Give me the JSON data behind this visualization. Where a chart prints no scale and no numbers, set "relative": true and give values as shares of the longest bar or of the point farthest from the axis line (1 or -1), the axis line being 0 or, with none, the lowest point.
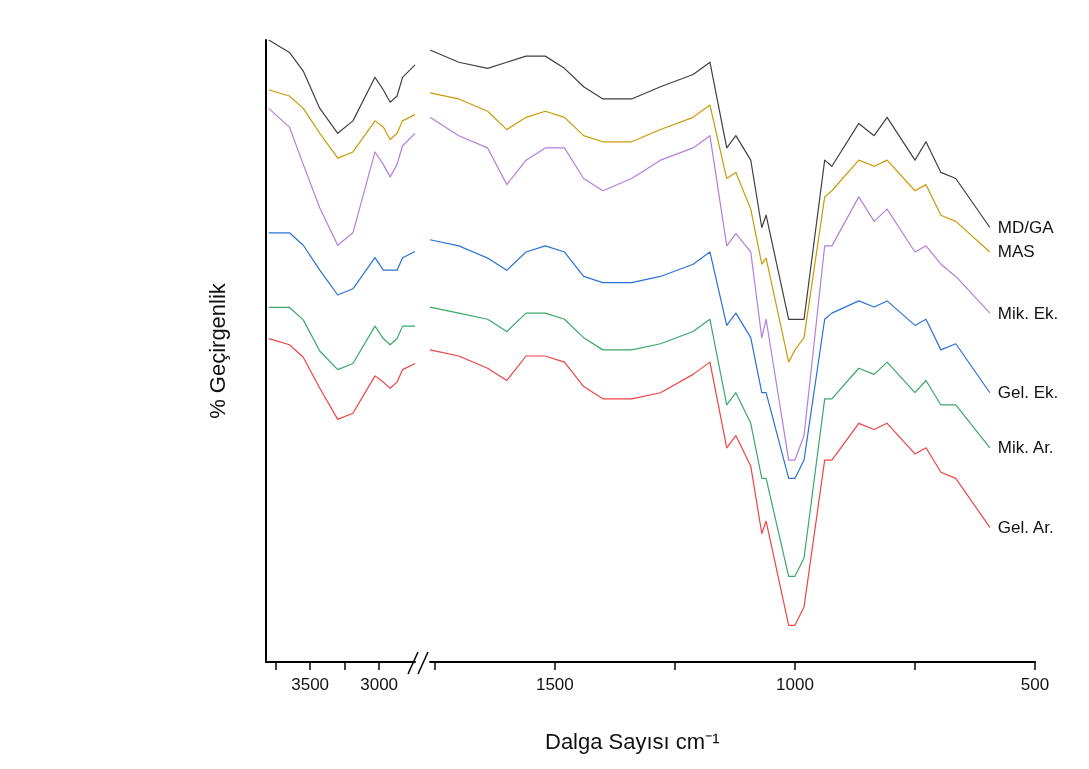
{
  "chart_data": [
    {
      "type": "line",
      "ylabel": "% Geçirgenlik",
      "relative": true,
      "xlim": [
        3820,
        2740
      ],
      "xticks": [
        {
          "value": 3750,
          "label": null
        },
        3500,
        {
          "value": 3250,
          "label": null
        },
        3000
      ],
      "x": [
        3800,
        3650,
        3550,
        3430,
        3300,
        3190,
        3030,
        2970,
        2920,
        2870,
        2830,
        2740
      ],
      "series": [
        {
          "color": "#404040",
          "values": [
            1.0,
            0.98,
            0.95,
            0.89,
            0.85,
            0.87,
            0.94,
            0.92,
            0.9,
            0.91,
            0.94,
            0.96
          ]
        },
        {
          "color": "#cc9a06",
          "values": [
            0.92,
            0.91,
            0.89,
            0.85,
            0.81,
            0.82,
            0.87,
            0.86,
            0.84,
            0.85,
            0.87,
            0.88
          ]
        },
        {
          "color": "#b57edc",
          "values": [
            0.89,
            0.86,
            0.8,
            0.73,
            0.67,
            0.69,
            0.82,
            0.8,
            0.78,
            0.8,
            0.83,
            0.85
          ]
        },
        {
          "color": "#2a72d6",
          "values": [
            0.69,
            0.69,
            0.67,
            0.63,
            0.59,
            0.6,
            0.65,
            0.63,
            0.63,
            0.63,
            0.65,
            0.66
          ]
        },
        {
          "color": "#3aa86a",
          "values": [
            0.57,
            0.57,
            0.55,
            0.5,
            0.47,
            0.48,
            0.54,
            0.52,
            0.51,
            0.52,
            0.54,
            0.54
          ]
        },
        {
          "color": "#ee4444",
          "values": [
            0.52,
            0.51,
            0.49,
            0.44,
            0.39,
            0.4,
            0.46,
            0.45,
            0.44,
            0.45,
            0.47,
            0.48
          ]
        }
      ]
    },
    {
      "type": "line",
      "xlabel": "Dalga Sayısı cm⁻¹",
      "relative": true,
      "xlim": [
        1760,
        500
      ],
      "xticks": [
        {
          "value": 1750,
          "label": null
        },
        1500,
        {
          "value": 1250,
          "label": null
        },
        1000,
        {
          "value": 750,
          "label": null
        },
        500
      ],
      "x": [
        1760,
        1700,
        1640,
        1600,
        1560,
        1520,
        1480,
        1440,
        1400,
        1340,
        1280,
        1212,
        1177,
        1142,
        1123,
        1092,
        1069,
        1060,
        1013,
        1000,
        981,
        938,
        923,
        867,
        835,
        808,
        750,
        727,
        696,
        665,
        594
      ],
      "series": [
        {
          "name": "MD/GA",
          "color": "#404040",
          "values": [
            1.0,
            0.98,
            0.97,
            0.98,
            0.99,
            0.99,
            0.97,
            0.94,
            0.92,
            0.92,
            0.94,
            0.96,
            0.98,
            0.84,
            0.86,
            0.82,
            0.71,
            0.73,
            0.56,
            0.56,
            0.56,
            0.82,
            0.81,
            0.88,
            0.86,
            0.89,
            0.82,
            0.85,
            0.8,
            0.79,
            0.71
          ]
        },
        {
          "name": "MAS",
          "color": "#cc9a06",
          "values": [
            0.93,
            0.92,
            0.9,
            0.87,
            0.89,
            0.9,
            0.89,
            0.86,
            0.85,
            0.85,
            0.87,
            0.89,
            0.91,
            0.79,
            0.8,
            0.74,
            0.65,
            0.66,
            0.49,
            0.51,
            0.53,
            0.76,
            0.77,
            0.82,
            0.81,
            0.82,
            0.77,
            0.78,
            0.73,
            0.72,
            0.67
          ]
        },
        {
          "name": "Mik. Ek.",
          "color": "#b57edc",
          "values": [
            0.89,
            0.86,
            0.84,
            0.78,
            0.82,
            0.84,
            0.84,
            0.79,
            0.77,
            0.79,
            0.82,
            0.84,
            0.86,
            0.68,
            0.7,
            0.67,
            0.53,
            0.56,
            0.33,
            0.33,
            0.37,
            0.68,
            0.68,
            0.76,
            0.72,
            0.74,
            0.67,
            0.68,
            0.65,
            0.63,
            0.57
          ]
        },
        {
          "name": "Gel. Ek.",
          "color": "#2a72d6",
          "values": [
            0.69,
            0.68,
            0.66,
            0.64,
            0.67,
            0.68,
            0.67,
            0.63,
            0.62,
            0.62,
            0.63,
            0.65,
            0.67,
            0.55,
            0.57,
            0.53,
            0.44,
            0.44,
            0.3,
            0.3,
            0.33,
            0.56,
            0.57,
            0.59,
            0.58,
            0.59,
            0.55,
            0.56,
            0.51,
            0.52,
            0.44
          ]
        },
        {
          "name": "Mik. Ar.",
          "color": "#3aa86a",
          "values": [
            0.58,
            0.57,
            0.56,
            0.54,
            0.57,
            0.57,
            0.56,
            0.53,
            0.51,
            0.51,
            0.52,
            0.54,
            0.56,
            0.42,
            0.44,
            0.39,
            0.3,
            0.3,
            0.14,
            0.14,
            0.17,
            0.43,
            0.43,
            0.48,
            0.47,
            0.49,
            0.44,
            0.46,
            0.42,
            0.42,
            0.35
          ]
        },
        {
          "name": "Gel. Ar.",
          "color": "#ee4444",
          "values": [
            0.51,
            0.5,
            0.48,
            0.46,
            0.5,
            0.5,
            0.49,
            0.45,
            0.43,
            0.43,
            0.44,
            0.47,
            0.49,
            0.35,
            0.37,
            0.32,
            0.21,
            0.23,
            0.06,
            0.06,
            0.09,
            0.33,
            0.33,
            0.39,
            0.38,
            0.39,
            0.34,
            0.35,
            0.31,
            0.3,
            0.22
          ]
        }
      ]
    }
  ]
}
